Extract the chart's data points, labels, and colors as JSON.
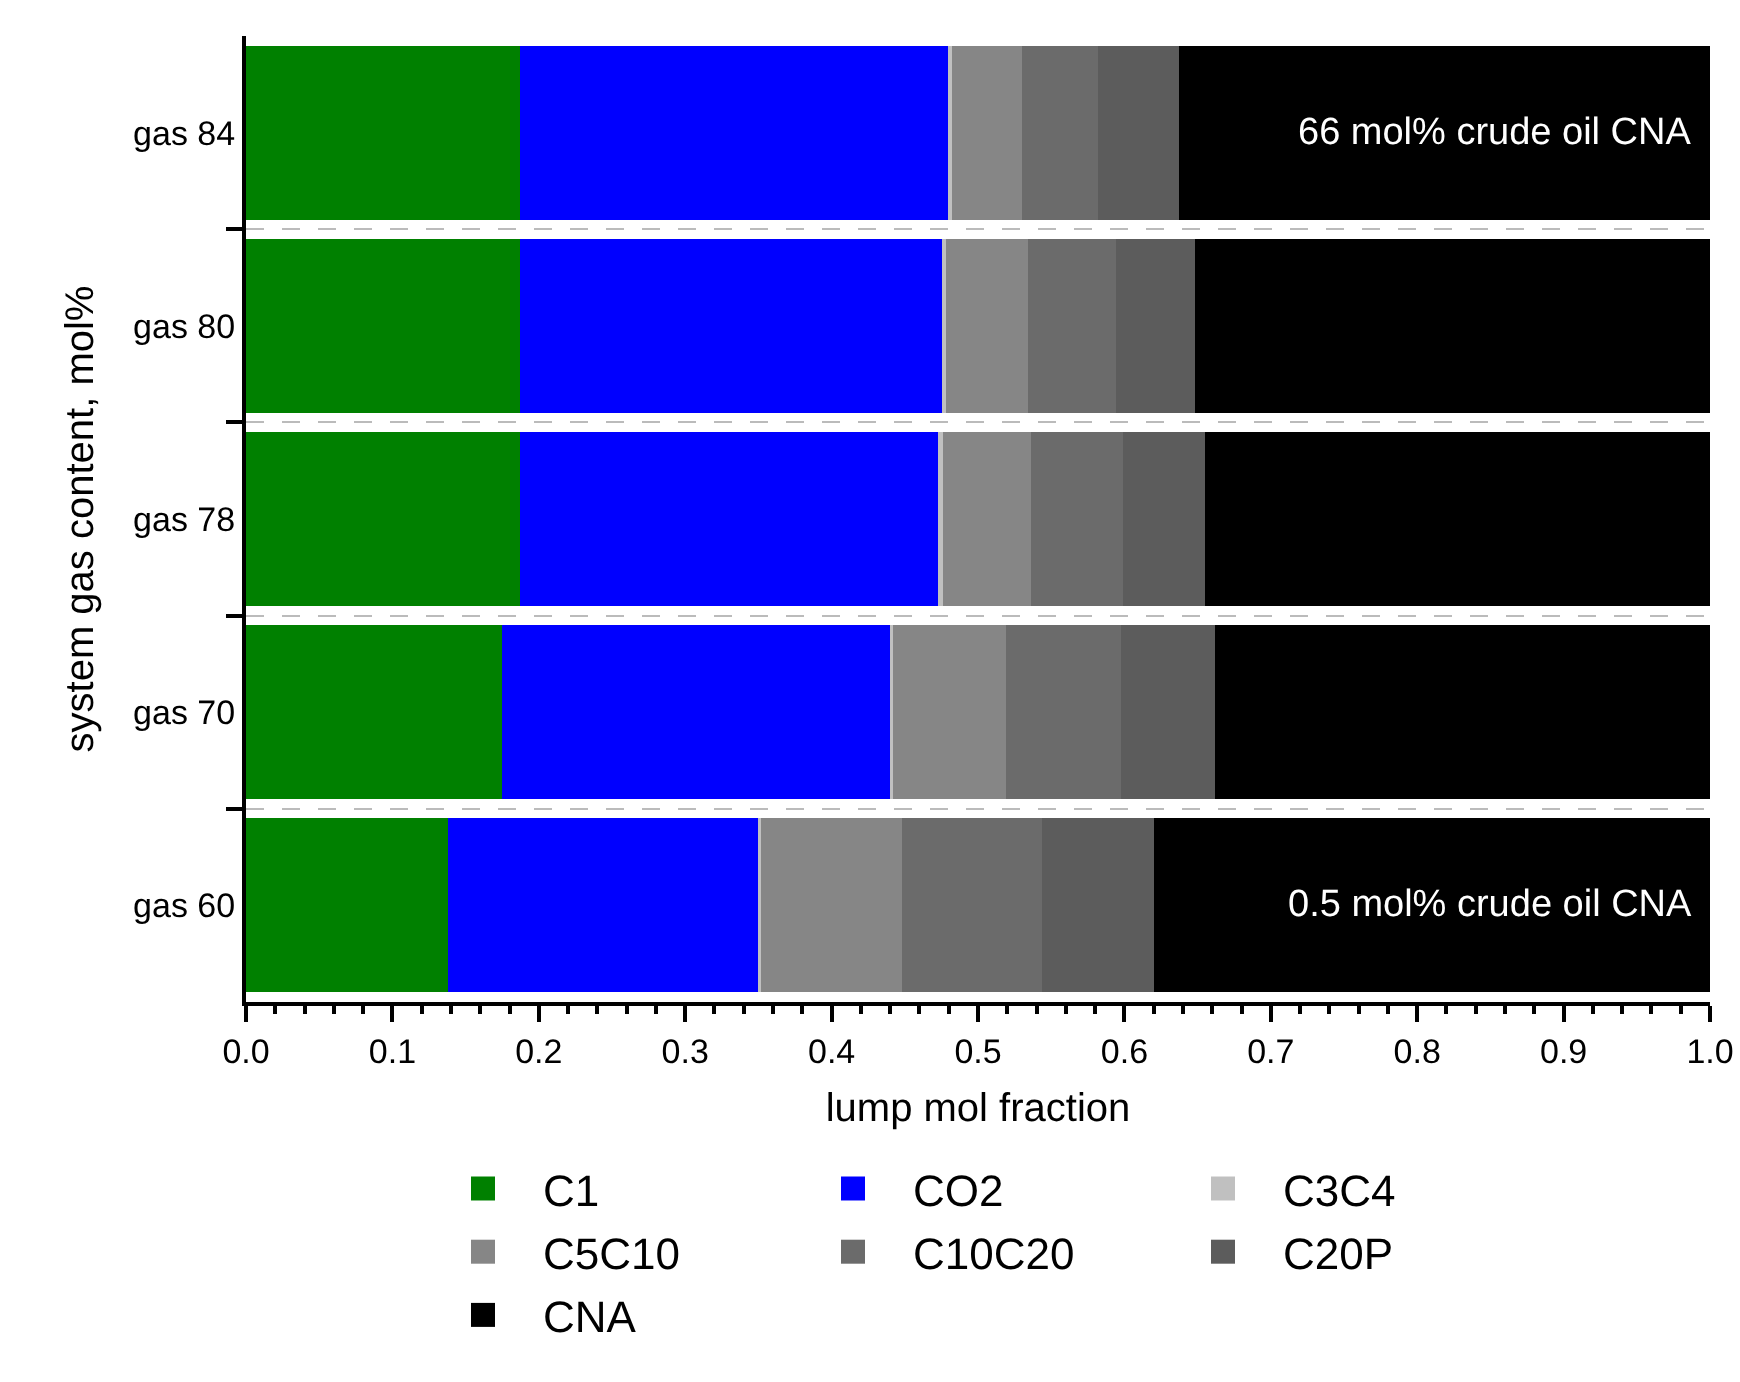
{
  "chart_data": {
    "type": "bar",
    "orientation": "horizontal",
    "stacked": true,
    "categories": [
      "gas 84",
      "gas 80",
      "gas 78",
      "gas 70",
      "gas 60"
    ],
    "series": [
      {
        "name": "C1",
        "color": "#008000",
        "values": [
          0.187,
          0.187,
          0.187,
          0.175,
          0.138
        ]
      },
      {
        "name": "CO2",
        "color": "#0000ff",
        "values": [
          0.293,
          0.289,
          0.287,
          0.265,
          0.212
        ]
      },
      {
        "name": "C3C4",
        "color": "#c0c0c0",
        "values": [
          0.002,
          0.002,
          0.002,
          0.002,
          0.002
        ]
      },
      {
        "name": "C5C10",
        "color": "#868686",
        "values": [
          0.048,
          0.056,
          0.06,
          0.077,
          0.096
        ]
      },
      {
        "name": "C10C20",
        "color": "#6b6b6b",
        "values": [
          0.052,
          0.06,
          0.063,
          0.079,
          0.096
        ]
      },
      {
        "name": "C20P",
        "color": "#5c5c5c",
        "values": [
          0.055,
          0.054,
          0.056,
          0.064,
          0.076
        ]
      },
      {
        "name": "CNA",
        "color": "#000000",
        "values": [
          0.363,
          0.352,
          0.345,
          0.338,
          0.38
        ]
      }
    ],
    "xlabel": "lump mol fraction",
    "ylabel": "system gas content, mol%",
    "xlim": [
      0,
      1
    ],
    "xticks": [
      {
        "value": 0,
        "label": "0.0"
      },
      0.1,
      0.2,
      0.3,
      0.4,
      0.5,
      0.6,
      0.7,
      0.8,
      0.9,
      {
        "value": 1,
        "label": "1.0"
      }
    ],
    "grid": "y",
    "legend": "bottom",
    "annotations": [
      {
        "text": "66 mol% crude oil CNA",
        "x": 0.99,
        "y": "gas 84"
      },
      {
        "text": "0.5 mol% crude oil CNA",
        "x": 0.99,
        "y": "gas 60"
      }
    ]
  }
}
